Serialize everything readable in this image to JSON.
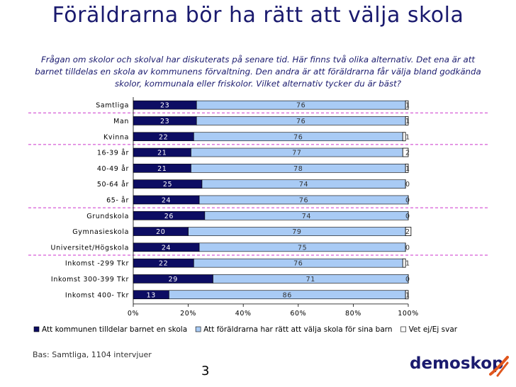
{
  "slide": {
    "title": "Föräldrarna bör ha rätt att välja skola",
    "question": "Frågan om skolor och skolval har diskuterats på senare tid. Här finns två olika alternativ. Det ena är att barnet tilldelas en skola av kommunens förvaltning. Den andra är att föräldrarna får välja bland godkända skolor, kommunala eller friskolor. Vilket alternativ tycker du är bäst?",
    "footnote": "Bas: Samtliga, 1104 intervjuer",
    "page_number": "3",
    "logo_text": "demoskop"
  },
  "colors": {
    "title": "#1a1a6e",
    "series_1": "#0d0d63",
    "series_2": "#a9cbf5",
    "series_3": "#ffffff",
    "divider": "#cc33cc"
  },
  "chart_data": {
    "type": "bar",
    "orientation": "horizontal",
    "stacked": "percent",
    "categories": [
      "Samtliga",
      "Man",
      "Kvinna",
      "16-39 år",
      "40-49 år",
      "50-64 år",
      "65- år",
      "Grundskola",
      "Gymnasieskola",
      "Universitet/Högskola",
      "Inkomst -299 Tkr",
      "Inkomst 300-399 Tkr",
      "Inkomst 400- Tkr"
    ],
    "series": [
      {
        "name": "Att kommunen tilldelar barnet en skola",
        "values": [
          23,
          23,
          22,
          21,
          21,
          25,
          24,
          26,
          20,
          24,
          22,
          29,
          13
        ]
      },
      {
        "name": "Att föräldrarna har rätt att välja skola för sina barn",
        "values": [
          76,
          76,
          76,
          77,
          78,
          74,
          76,
          74,
          79,
          75,
          76,
          71,
          86
        ]
      },
      {
        "name": "Vet ej/Ej svar",
        "values": [
          1,
          1,
          1,
          2,
          1,
          0,
          0,
          0,
          2,
          0,
          1,
          0,
          1
        ]
      }
    ],
    "xticks": [
      "0%",
      "20%",
      "40%",
      "60%",
      "80%",
      "100%"
    ],
    "xlim": [
      0,
      100
    ],
    "group_dividers_after": [
      "Samtliga",
      "Kvinna",
      "65- år",
      "Universitet/Högskola"
    ],
    "legend_position": "bottom",
    "grid": false
  }
}
